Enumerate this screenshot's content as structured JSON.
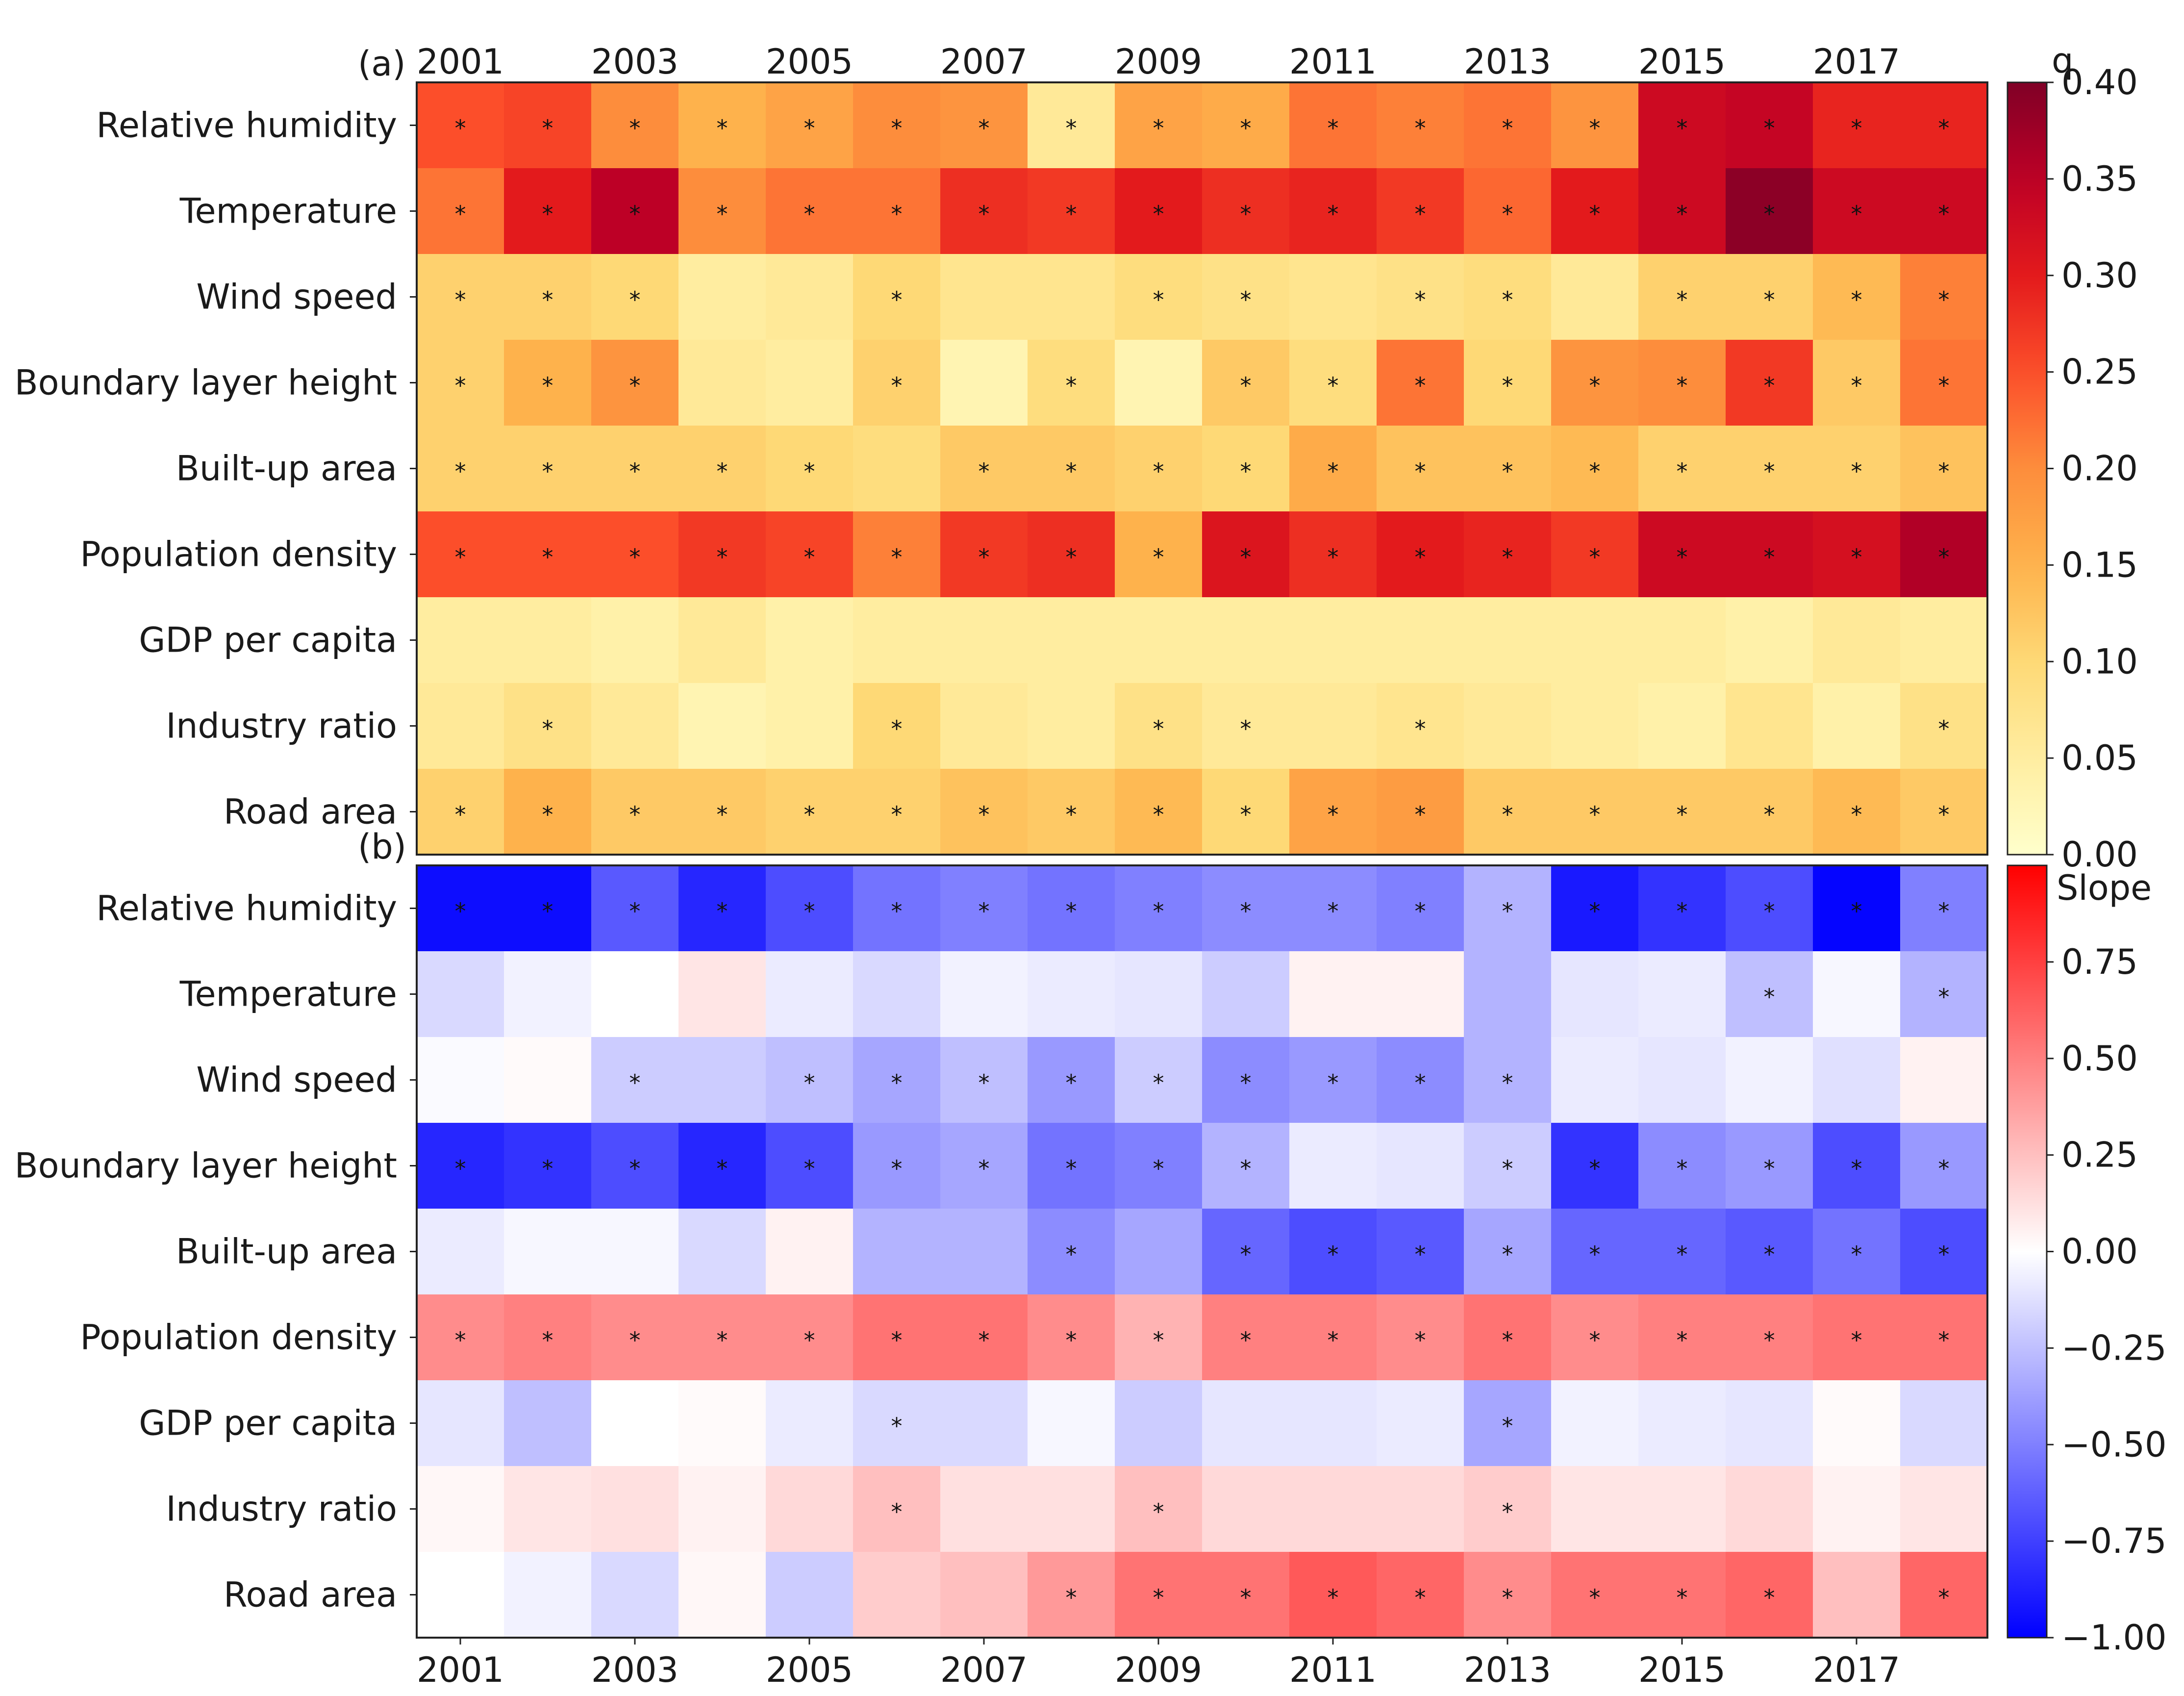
{
  "chart_data": [
    {
      "panel": "(a)",
      "type": "heatmap",
      "colorbar_title": "q",
      "colormap": "YlOrRd",
      "vmin": 0.0,
      "vmax": 0.4,
      "colorbar_ticks": [
        "0.00",
        "0.05",
        "0.10",
        "0.15",
        "0.20",
        "0.25",
        "0.30",
        "0.35",
        "0.40"
      ],
      "year_ticks": [
        "2001",
        "2003",
        "2005",
        "2007",
        "2009",
        "2011",
        "2013",
        "2015",
        "2017"
      ],
      "years": [
        2001,
        2002,
        2003,
        2004,
        2005,
        2006,
        2007,
        2008,
        2009,
        2010,
        2011,
        2012,
        2013,
        2014,
        2015,
        2016,
        2017,
        2018
      ],
      "rows": [
        {
          "label": "Relative humidity",
          "values": [
            0.25,
            0.26,
            0.2,
            0.15,
            0.17,
            0.2,
            0.19,
            0.06,
            0.17,
            0.16,
            0.22,
            0.21,
            0.22,
            0.19,
            0.33,
            0.34,
            0.29,
            0.29
          ],
          "sig": [
            1,
            1,
            1,
            1,
            1,
            1,
            1,
            1,
            1,
            1,
            1,
            1,
            1,
            1,
            1,
            1,
            1,
            1
          ]
        },
        {
          "label": "Temperature",
          "values": [
            0.22,
            0.3,
            0.35,
            0.2,
            0.22,
            0.22,
            0.28,
            0.27,
            0.3,
            0.28,
            0.29,
            0.27,
            0.23,
            0.3,
            0.33,
            0.39,
            0.33,
            0.33
          ],
          "sig": [
            1,
            1,
            1,
            1,
            1,
            1,
            1,
            1,
            1,
            1,
            1,
            1,
            1,
            1,
            1,
            1,
            1,
            1
          ]
        },
        {
          "label": "Wind speed",
          "values": [
            0.11,
            0.11,
            0.1,
            0.05,
            0.06,
            0.1,
            0.07,
            0.07,
            0.09,
            0.08,
            0.07,
            0.08,
            0.09,
            0.06,
            0.11,
            0.11,
            0.14,
            0.21
          ],
          "sig": [
            1,
            1,
            1,
            0,
            0,
            1,
            0,
            0,
            1,
            1,
            0,
            1,
            1,
            0,
            1,
            1,
            1,
            1
          ]
        },
        {
          "label": "Boundary layer height",
          "values": [
            0.11,
            0.15,
            0.19,
            0.06,
            0.05,
            0.11,
            0.03,
            0.09,
            0.03,
            0.12,
            0.09,
            0.22,
            0.1,
            0.19,
            0.2,
            0.27,
            0.12,
            0.22
          ],
          "sig": [
            1,
            1,
            1,
            0,
            0,
            1,
            0,
            1,
            0,
            1,
            1,
            1,
            1,
            1,
            1,
            1,
            1,
            1
          ]
        },
        {
          "label": "Built-up area",
          "values": [
            0.11,
            0.11,
            0.11,
            0.11,
            0.1,
            0.09,
            0.12,
            0.12,
            0.11,
            0.1,
            0.16,
            0.13,
            0.13,
            0.14,
            0.11,
            0.11,
            0.11,
            0.13
          ],
          "sig": [
            1,
            1,
            1,
            1,
            1,
            0,
            1,
            1,
            1,
            1,
            1,
            1,
            1,
            1,
            1,
            1,
            1,
            1
          ]
        },
        {
          "label": "Population density",
          "values": [
            0.25,
            0.25,
            0.25,
            0.27,
            0.26,
            0.21,
            0.27,
            0.28,
            0.15,
            0.31,
            0.28,
            0.3,
            0.29,
            0.27,
            0.33,
            0.33,
            0.32,
            0.36
          ],
          "sig": [
            1,
            1,
            1,
            1,
            1,
            1,
            1,
            1,
            1,
            1,
            1,
            1,
            1,
            1,
            1,
            1,
            1,
            1
          ]
        },
        {
          "label": "GDP per capita",
          "values": [
            0.05,
            0.05,
            0.04,
            0.06,
            0.04,
            0.05,
            0.05,
            0.05,
            0.05,
            0.05,
            0.05,
            0.05,
            0.05,
            0.05,
            0.05,
            0.04,
            0.06,
            0.05
          ],
          "sig": [
            0,
            0,
            0,
            0,
            0,
            0,
            0,
            0,
            0,
            0,
            0,
            0,
            0,
            0,
            0,
            0,
            0,
            0
          ]
        },
        {
          "label": "Industry ratio",
          "values": [
            0.06,
            0.08,
            0.06,
            0.03,
            0.04,
            0.1,
            0.06,
            0.05,
            0.08,
            0.06,
            0.06,
            0.07,
            0.06,
            0.05,
            0.04,
            0.07,
            0.04,
            0.08
          ],
          "sig": [
            0,
            1,
            0,
            0,
            0,
            1,
            0,
            0,
            1,
            1,
            0,
            1,
            0,
            0,
            0,
            0,
            0,
            1
          ]
        },
        {
          "label": "Road area",
          "values": [
            0.11,
            0.15,
            0.12,
            0.12,
            0.11,
            0.11,
            0.13,
            0.12,
            0.14,
            0.1,
            0.17,
            0.18,
            0.12,
            0.12,
            0.12,
            0.12,
            0.14,
            0.12
          ],
          "sig": [
            1,
            1,
            1,
            1,
            1,
            1,
            1,
            1,
            1,
            1,
            1,
            1,
            1,
            1,
            1,
            1,
            1,
            1
          ]
        }
      ]
    },
    {
      "panel": "(b)",
      "type": "heatmap",
      "colorbar_title": "Slope",
      "colormap": "bwr",
      "vmin": -1.0,
      "vmax": 1.0,
      "colorbar_ticks": [
        "−1.00",
        "−0.75",
        "−0.50",
        "−0.25",
        "0.00",
        "0.25",
        "0.50",
        "0.75"
      ],
      "year_ticks": [
        "2001",
        "2003",
        "2005",
        "2007",
        "2009",
        "2011",
        "2013",
        "2015",
        "2017"
      ],
      "years": [
        2001,
        2002,
        2003,
        2004,
        2005,
        2006,
        2007,
        2008,
        2009,
        2010,
        2011,
        2012,
        2013,
        2014,
        2015,
        2016,
        2017,
        2018
      ],
      "rows": [
        {
          "label": "Relative humidity",
          "values": [
            -0.95,
            -0.95,
            -0.65,
            -0.85,
            -0.7,
            -0.55,
            -0.5,
            -0.55,
            -0.5,
            -0.45,
            -0.45,
            -0.5,
            -0.3,
            -0.9,
            -0.8,
            -0.7,
            -0.98,
            -0.5
          ],
          "sig": [
            1,
            1,
            1,
            1,
            1,
            1,
            1,
            1,
            1,
            1,
            1,
            1,
            1,
            1,
            1,
            1,
            1,
            1
          ]
        },
        {
          "label": "Temperature",
          "values": [
            -0.15,
            -0.05,
            0.0,
            0.1,
            -0.08,
            -0.15,
            -0.05,
            -0.08,
            -0.1,
            -0.2,
            0.05,
            0.05,
            -0.3,
            -0.1,
            -0.08,
            -0.25,
            -0.03,
            -0.3
          ],
          "sig": [
            0,
            0,
            0,
            0,
            0,
            0,
            0,
            0,
            0,
            0,
            0,
            0,
            0,
            0,
            0,
            1,
            0,
            1
          ]
        },
        {
          "label": "Wind speed",
          "values": [
            -0.02,
            0.02,
            -0.2,
            -0.2,
            -0.25,
            -0.35,
            -0.25,
            -0.4,
            -0.2,
            -0.45,
            -0.4,
            -0.45,
            -0.3,
            -0.08,
            -0.1,
            -0.05,
            -0.12,
            0.05
          ],
          "sig": [
            0,
            0,
            1,
            0,
            1,
            1,
            1,
            1,
            1,
            1,
            1,
            1,
            1,
            0,
            0,
            0,
            0,
            0
          ]
        },
        {
          "label": "Boundary layer height",
          "values": [
            -0.85,
            -0.8,
            -0.7,
            -0.85,
            -0.7,
            -0.4,
            -0.35,
            -0.55,
            -0.5,
            -0.3,
            -0.08,
            -0.1,
            -0.2,
            -0.8,
            -0.45,
            -0.4,
            -0.7,
            -0.4
          ],
          "sig": [
            1,
            1,
            1,
            1,
            1,
            1,
            1,
            1,
            1,
            1,
            0,
            0,
            1,
            1,
            1,
            1,
            1,
            1
          ]
        },
        {
          "label": "Built-up area",
          "values": [
            -0.08,
            -0.03,
            -0.03,
            -0.15,
            0.05,
            -0.3,
            -0.3,
            -0.45,
            -0.35,
            -0.6,
            -0.7,
            -0.65,
            -0.35,
            -0.6,
            -0.6,
            -0.65,
            -0.55,
            -0.7
          ],
          "sig": [
            0,
            0,
            0,
            0,
            0,
            0,
            0,
            1,
            0,
            1,
            1,
            1,
            1,
            1,
            1,
            1,
            1,
            1
          ]
        },
        {
          "label": "Population density",
          "values": [
            0.45,
            0.5,
            0.45,
            0.45,
            0.45,
            0.55,
            0.55,
            0.45,
            0.3,
            0.5,
            0.5,
            0.45,
            0.55,
            0.45,
            0.5,
            0.5,
            0.55,
            0.55
          ],
          "sig": [
            1,
            1,
            1,
            1,
            1,
            1,
            1,
            1,
            1,
            1,
            1,
            1,
            1,
            1,
            1,
            1,
            1,
            1
          ]
        },
        {
          "label": "GDP per capita",
          "values": [
            -0.1,
            -0.25,
            0.0,
            0.02,
            -0.08,
            -0.15,
            -0.15,
            -0.03,
            -0.2,
            -0.1,
            -0.1,
            -0.08,
            -0.35,
            -0.05,
            -0.08,
            -0.1,
            0.02,
            -0.15
          ],
          "sig": [
            0,
            0,
            0,
            0,
            0,
            1,
            0,
            0,
            0,
            0,
            0,
            0,
            1,
            0,
            0,
            0,
            0,
            0
          ]
        },
        {
          "label": "Industry ratio",
          "values": [
            0.03,
            0.1,
            0.12,
            0.05,
            0.15,
            0.25,
            0.12,
            0.12,
            0.25,
            0.15,
            0.15,
            0.15,
            0.2,
            0.1,
            0.1,
            0.15,
            0.05,
            0.1
          ],
          "sig": [
            0,
            0,
            0,
            0,
            0,
            1,
            0,
            0,
            1,
            0,
            0,
            0,
            1,
            0,
            0,
            0,
            0,
            0
          ]
        },
        {
          "label": "Road area",
          "values": [
            0.0,
            -0.05,
            -0.15,
            0.03,
            -0.2,
            0.2,
            0.25,
            0.4,
            0.55,
            0.55,
            0.65,
            0.6,
            0.45,
            0.55,
            0.55,
            0.6,
            0.25,
            0.6
          ],
          "sig": [
            0,
            0,
            0,
            0,
            0,
            0,
            0,
            1,
            1,
            1,
            1,
            1,
            1,
            1,
            1,
            1,
            0,
            1
          ]
        }
      ]
    }
  ]
}
